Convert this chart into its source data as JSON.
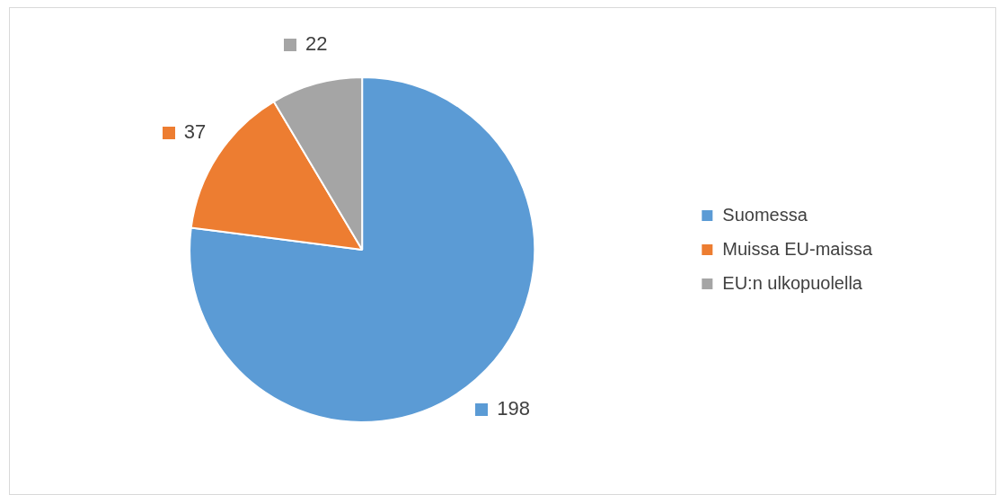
{
  "chart_data": {
    "type": "pie",
    "categories": [
      "Suomessa",
      "Muissa EU-maissa",
      "EU:n ulkopuolella"
    ],
    "values": [
      198,
      37,
      22
    ],
    "colors": [
      "#5b9bd5",
      "#ed7d31",
      "#a5a5a5"
    ],
    "data_labels": true,
    "legend": "right"
  }
}
